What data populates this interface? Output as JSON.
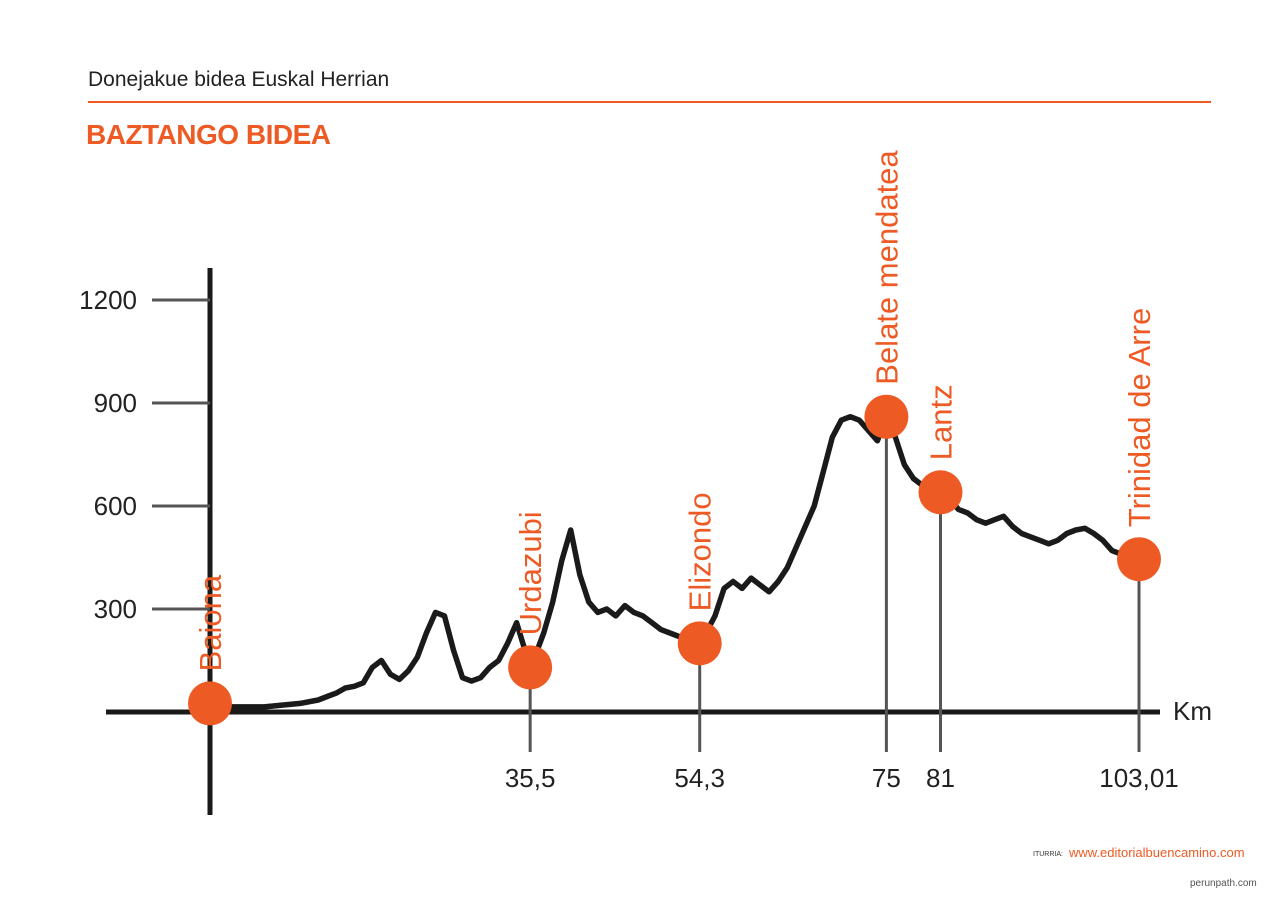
{
  "header": {
    "subtitle": "Donejakue bidea Euskal Herrian",
    "title": "BAZTANGO BIDEA"
  },
  "source": {
    "label": "ITURRIA:",
    "url": "www.editorialbuencamino.com"
  },
  "watermark": "perunpath.com",
  "colors": {
    "accent": "#ee5a24",
    "line": "#1a1a1a",
    "axis": "#1a1a1a",
    "tick": "#555555",
    "stem": "#555555"
  },
  "chart_data": {
    "type": "line",
    "x_unit_label": "Km",
    "y_ticks": [
      300,
      600,
      900,
      1200
    ],
    "ylim": [
      0,
      1200
    ],
    "xlim": [
      0,
      103.01
    ],
    "stops": [
      {
        "name": "Baiona",
        "km": 0,
        "elevation": 25,
        "km_label": ""
      },
      {
        "name": "Urdazubi",
        "km": 35.5,
        "elevation": 130,
        "km_label": "35,5"
      },
      {
        "name": "Elizondo",
        "km": 54.3,
        "elevation": 200,
        "km_label": "54,3"
      },
      {
        "name": "Belate mendatea",
        "km": 75,
        "elevation": 860,
        "km_label": "75"
      },
      {
        "name": "Lantz",
        "km": 81,
        "elevation": 640,
        "km_label": "81"
      },
      {
        "name": "Trinidad de Arre",
        "km": 103.01,
        "elevation": 445,
        "km_label": "103,01"
      }
    ],
    "series": [
      {
        "x": [
          0,
          2,
          4,
          6,
          8,
          10,
          12,
          13,
          14,
          15,
          16,
          17,
          18,
          19,
          20,
          21,
          22,
          23,
          24,
          25,
          26,
          27,
          28,
          29,
          30,
          31,
          32,
          33,
          34,
          35.5,
          36,
          37,
          38,
          39,
          40,
          41,
          42,
          43,
          44,
          45,
          46,
          47,
          48,
          49,
          50,
          51,
          52,
          53,
          54.3,
          55,
          56,
          57,
          58,
          59,
          60,
          61,
          62,
          63,
          64,
          65,
          66,
          67,
          68,
          69,
          70,
          71,
          72,
          73,
          74,
          75,
          76,
          77,
          78,
          79,
          80,
          81,
          82,
          83,
          84,
          85,
          86,
          87,
          88,
          89,
          90,
          91,
          92,
          93,
          94,
          95,
          96,
          97,
          98,
          99,
          100,
          101,
          102,
          103.01
        ],
        "y": [
          25,
          15,
          15,
          15,
          20,
          25,
          35,
          45,
          55,
          70,
          75,
          85,
          130,
          150,
          110,
          95,
          120,
          160,
          230,
          290,
          280,
          180,
          100,
          90,
          100,
          130,
          150,
          200,
          260,
          130,
          160,
          230,
          320,
          440,
          530,
          400,
          320,
          290,
          300,
          280,
          310,
          290,
          280,
          260,
          240,
          230,
          220,
          210,
          200,
          230,
          280,
          360,
          380,
          360,
          390,
          370,
          350,
          380,
          420,
          480,
          540,
          600,
          700,
          800,
          850,
          860,
          850,
          820,
          790,
          860,
          800,
          720,
          680,
          660,
          650,
          640,
          620,
          590,
          580,
          560,
          550,
          560,
          570,
          540,
          520,
          510,
          500,
          490,
          500,
          520,
          530,
          535,
          520,
          500,
          470,
          460,
          450,
          445
        ]
      }
    ]
  }
}
